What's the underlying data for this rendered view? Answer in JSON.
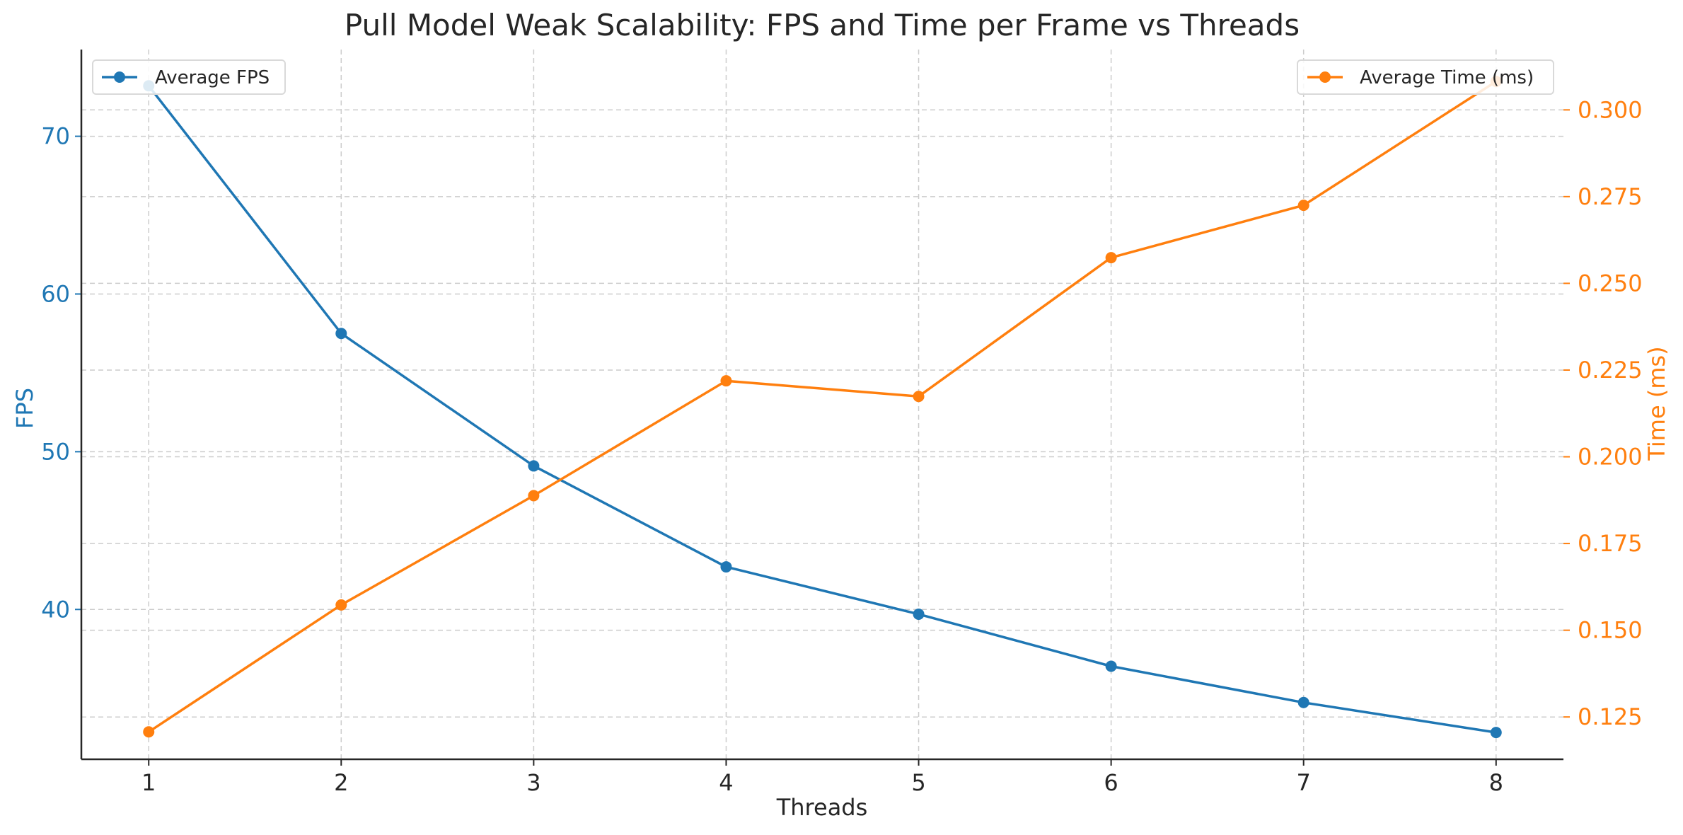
{
  "chart_data": {
    "type": "line",
    "title": "Pull Model Weak Scalability: FPS and Time per Frame vs Threads",
    "xlabel": "Threads",
    "x": [
      1,
      2,
      3,
      4,
      5,
      6,
      7,
      8
    ],
    "xlim": [
      0.65,
      8.35
    ],
    "grid": true,
    "y_left": {
      "label": "FPS",
      "lim": [
        30.5,
        75.5
      ],
      "ticks": [
        40,
        50,
        60,
        70
      ]
    },
    "y_right": {
      "label": "Time (ms)",
      "lim": [
        0.1128,
        0.3174
      ],
      "ticks": [
        0.125,
        0.15,
        0.175,
        0.2,
        0.225,
        0.25,
        0.275,
        0.3
      ]
    },
    "series": [
      {
        "name": "Average FPS",
        "axis": "left",
        "color": "#1f77b4",
        "values": [
          73.2,
          57.5,
          49.1,
          42.7,
          39.7,
          36.4,
          34.1,
          32.2
        ],
        "legend_position": "upper-left"
      },
      {
        "name": "Average Time (ms)",
        "axis": "right",
        "color": "#ff7f0e",
        "values": [
          0.1207,
          0.1573,
          0.1888,
          0.2219,
          0.2174,
          0.2574,
          0.2725,
          0.3082
        ],
        "legend_position": "upper-right"
      }
    ]
  }
}
